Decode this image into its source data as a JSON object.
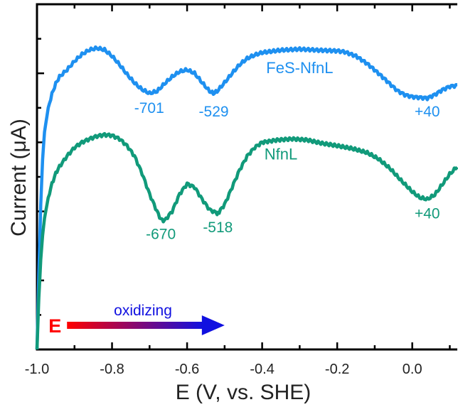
{
  "chart_data": {
    "type": "line",
    "xlabel": "E (V, vs. SHE)",
    "ylabel": "Current (μA)",
    "xlim": [
      -1.0,
      0.12
    ],
    "ylim": [
      0,
      1
    ],
    "x_ticks": [
      "-1.0",
      "-0.8",
      "-0.6",
      "-0.4",
      "-0.2",
      "0.0"
    ],
    "x_tick_values": [
      -1.0,
      -0.8,
      -0.6,
      -0.4,
      -0.2,
      0.0
    ],
    "y_tick_labels_shown": false,
    "grid": false,
    "series": [
      {
        "name": "FeS-NfnL",
        "color": "#1E90F0",
        "points": [
          [
            -1.0,
            0.0
          ],
          [
            -0.995,
            0.22
          ],
          [
            -0.99,
            0.42
          ],
          [
            -0.985,
            0.55
          ],
          [
            -0.98,
            0.63
          ],
          [
            -0.97,
            0.7
          ],
          [
            -0.96,
            0.74
          ],
          [
            -0.95,
            0.77
          ],
          [
            -0.94,
            0.79
          ],
          [
            -0.92,
            0.81
          ],
          [
            -0.9,
            0.835
          ],
          [
            -0.88,
            0.855
          ],
          [
            -0.86,
            0.868
          ],
          [
            -0.84,
            0.873
          ],
          [
            -0.82,
            0.868
          ],
          [
            -0.8,
            0.85
          ],
          [
            -0.78,
            0.825
          ],
          [
            -0.76,
            0.797
          ],
          [
            -0.74,
            0.772
          ],
          [
            -0.72,
            0.753
          ],
          [
            -0.7,
            0.742
          ],
          [
            -0.68,
            0.748
          ],
          [
            -0.66,
            0.77
          ],
          [
            -0.64,
            0.79
          ],
          [
            -0.62,
            0.805
          ],
          [
            -0.6,
            0.81
          ],
          [
            -0.58,
            0.8
          ],
          [
            -0.56,
            0.773
          ],
          [
            -0.54,
            0.748
          ],
          [
            -0.53,
            0.742
          ],
          [
            -0.52,
            0.748
          ],
          [
            -0.5,
            0.773
          ],
          [
            -0.48,
            0.8
          ],
          [
            -0.46,
            0.825
          ],
          [
            -0.44,
            0.843
          ],
          [
            -0.42,
            0.853
          ],
          [
            -0.4,
            0.86
          ],
          [
            -0.35,
            0.867
          ],
          [
            -0.3,
            0.87
          ],
          [
            -0.25,
            0.867
          ],
          [
            -0.2,
            0.865
          ],
          [
            -0.18,
            0.862
          ],
          [
            -0.15,
            0.85
          ],
          [
            -0.12,
            0.828
          ],
          [
            -0.09,
            0.8
          ],
          [
            -0.06,
            0.77
          ],
          [
            -0.04,
            0.75
          ],
          [
            -0.02,
            0.738
          ],
          [
            0.0,
            0.732
          ],
          [
            0.02,
            0.73
          ],
          [
            0.04,
            0.728
          ],
          [
            0.06,
            0.738
          ],
          [
            0.08,
            0.752
          ],
          [
            0.1,
            0.762
          ],
          [
            0.12,
            0.765
          ]
        ]
      },
      {
        "name": "NfnL",
        "color": "#119A7A",
        "points": [
          [
            -1.0,
            0.0
          ],
          [
            -0.995,
            0.15
          ],
          [
            -0.99,
            0.26
          ],
          [
            -0.985,
            0.33
          ],
          [
            -0.98,
            0.38
          ],
          [
            -0.97,
            0.44
          ],
          [
            -0.96,
            0.48
          ],
          [
            -0.95,
            0.51
          ],
          [
            -0.94,
            0.53
          ],
          [
            -0.92,
            0.56
          ],
          [
            -0.9,
            0.585
          ],
          [
            -0.88,
            0.6
          ],
          [
            -0.86,
            0.61
          ],
          [
            -0.84,
            0.618
          ],
          [
            -0.82,
            0.622
          ],
          [
            -0.8,
            0.62
          ],
          [
            -0.78,
            0.61
          ],
          [
            -0.76,
            0.59
          ],
          [
            -0.74,
            0.56
          ],
          [
            -0.72,
            0.51
          ],
          [
            -0.7,
            0.45
          ],
          [
            -0.68,
            0.4
          ],
          [
            -0.67,
            0.377
          ],
          [
            -0.66,
            0.373
          ],
          [
            -0.64,
            0.4
          ],
          [
            -0.62,
            0.45
          ],
          [
            -0.6,
            0.48
          ],
          [
            -0.58,
            0.47
          ],
          [
            -0.56,
            0.435
          ],
          [
            -0.54,
            0.405
          ],
          [
            -0.52,
            0.395
          ],
          [
            -0.518,
            0.394
          ],
          [
            -0.5,
            0.42
          ],
          [
            -0.48,
            0.47
          ],
          [
            -0.46,
            0.52
          ],
          [
            -0.44,
            0.56
          ],
          [
            -0.42,
            0.585
          ],
          [
            -0.4,
            0.6
          ],
          [
            -0.36,
            0.607
          ],
          [
            -0.32,
            0.61
          ],
          [
            -0.28,
            0.607
          ],
          [
            -0.24,
            0.597
          ],
          [
            -0.2,
            0.59
          ],
          [
            -0.16,
            0.582
          ],
          [
            -0.12,
            0.57
          ],
          [
            -0.09,
            0.552
          ],
          [
            -0.06,
            0.525
          ],
          [
            -0.03,
            0.49
          ],
          [
            0.0,
            0.457
          ],
          [
            0.02,
            0.44
          ],
          [
            0.04,
            0.435
          ],
          [
            0.06,
            0.448
          ],
          [
            0.08,
            0.478
          ],
          [
            0.1,
            0.508
          ],
          [
            0.12,
            0.53
          ]
        ]
      }
    ],
    "series_labels": [
      {
        "text": "FeS-NfnL",
        "x": -0.3,
        "y": 0.8,
        "series": 0
      },
      {
        "text": "NfnL",
        "x": -0.35,
        "y": 0.55,
        "series": 1
      }
    ],
    "annotations": [
      {
        "text": "-701",
        "x": -0.701,
        "y": 0.685,
        "series": 0
      },
      {
        "text": "-529",
        "x": -0.529,
        "y": 0.675,
        "series": 0
      },
      {
        "text": "+40",
        "x": 0.04,
        "y": 0.675,
        "series": 0
      },
      {
        "text": "-670",
        "x": -0.67,
        "y": 0.32,
        "series": 1
      },
      {
        "text": "-518",
        "x": -0.518,
        "y": 0.34,
        "series": 1
      },
      {
        "text": "+40",
        "x": 0.04,
        "y": 0.38,
        "series": 1
      }
    ],
    "scan_arrow": {
      "label": "oxidizing",
      "letter": "E",
      "letter_color": "#FF0000",
      "gradient_start": "#FF0000",
      "gradient_end": "#1010E0",
      "label_color": "#1010E0",
      "x_start": -0.92,
      "x_end": -0.5,
      "y": 0.07
    }
  }
}
